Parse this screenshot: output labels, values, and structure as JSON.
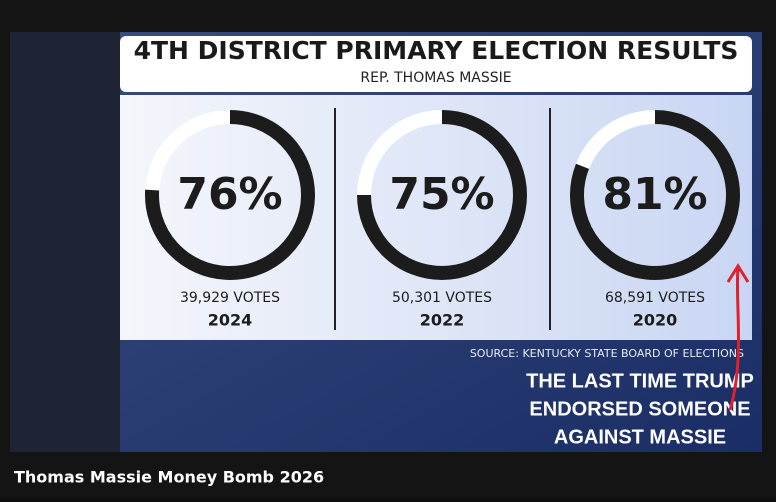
{
  "header": {
    "title": "4TH DISTRICT PRIMARY ELECTION RESULTS",
    "subtitle": "REP. THOMAS MASSIE"
  },
  "chart_data": [
    {
      "type": "donut",
      "values": [
        76
      ],
      "value_labels": [
        "76%"
      ],
      "votes": "39,929 VOTES",
      "year": "2024",
      "color": "#1c1c1c"
    },
    {
      "type": "donut",
      "values": [
        75
      ],
      "value_labels": [
        "75%"
      ],
      "votes": "50,301 VOTES",
      "year": "2022",
      "color": "#1c1c1c"
    },
    {
      "type": "donut",
      "values": [
        81
      ],
      "value_labels": [
        "81%"
      ],
      "votes": "68,591 VOTES",
      "year": "2020",
      "color": "#1c1c1c"
    }
  ],
  "source": "SOURCE: KENTUCKY STATE BOARD OF ELECTIONS",
  "annotation": [
    "THE LAST TIME TRUMP",
    "ENDORSED SOMEONE",
    "AGAINST MASSIE"
  ],
  "caption": "Thomas Massie Money Bomb 2026"
}
